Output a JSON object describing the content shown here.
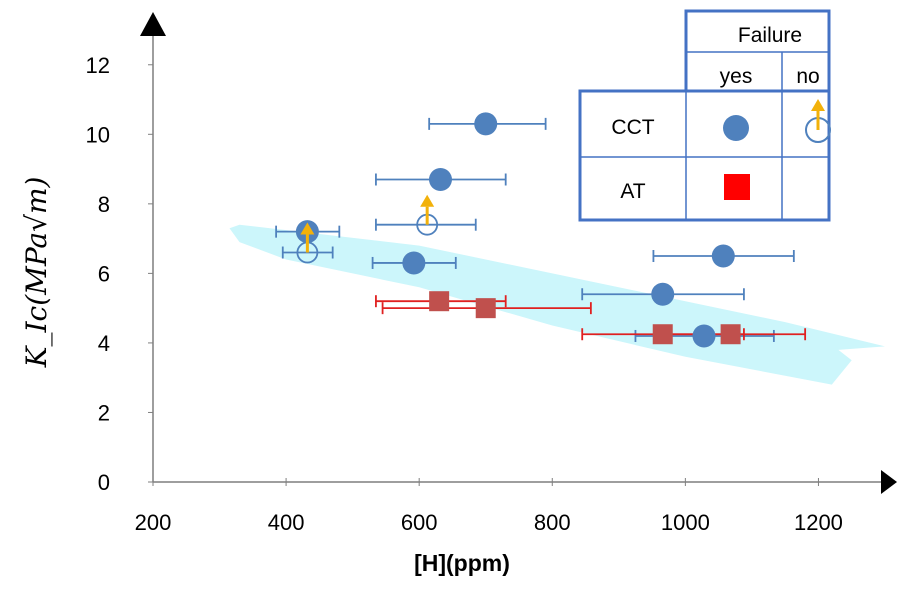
{
  "chart_data": {
    "type": "scatter",
    "title": "",
    "xlabel": "[H](ppm)",
    "ylabel": "K_Ic(MPa√m)",
    "xlim": [
      200,
      1300
    ],
    "ylim": [
      0,
      13
    ],
    "xticks": [
      200,
      400,
      600,
      800,
      1000,
      1200
    ],
    "yticks": [
      0,
      2,
      4,
      6,
      8,
      10,
      12
    ],
    "grid": false,
    "band": {
      "description_color": "#ccf6fb",
      "upper": [
        [
          315,
          7.3
        ],
        [
          330,
          7.4
        ],
        [
          600,
          6.8
        ],
        [
          800,
          6.0
        ],
        [
          1000,
          5.2
        ],
        [
          1150,
          4.6
        ],
        [
          1300,
          3.9
        ]
      ],
      "lower": [
        [
          1300,
          3.9
        ],
        [
          1230,
          3.8
        ],
        [
          1250,
          3.5
        ],
        [
          1220,
          2.8
        ],
        [
          1000,
          3.6
        ],
        [
          800,
          4.5
        ],
        [
          600,
          5.6
        ],
        [
          400,
          6.4
        ],
        [
          330,
          6.9
        ]
      ]
    },
    "colors": {
      "cct": "#4f81bd",
      "at": "#c0504d",
      "at_errorbar": "#e02020",
      "legend_at": "#ff0000",
      "arrow": "#f2b10a",
      "legend_border": "#4472c4",
      "legend_fill": "#ffffff"
    },
    "series": [
      {
        "group": "CCT",
        "failure": "yes",
        "marker": "filled-circle",
        "points": [
          {
            "x": 700,
            "y": 10.3,
            "xerr": [
              615,
              790
            ]
          },
          {
            "x": 632,
            "y": 8.7,
            "xerr": [
              535,
              730
            ]
          },
          {
            "x": 432,
            "y": 7.2,
            "xerr": [
              385,
              480
            ]
          },
          {
            "x": 592,
            "y": 6.3,
            "xerr": [
              530,
              655
            ]
          },
          {
            "x": 1057,
            "y": 6.5,
            "xerr": [
              952,
              1163
            ]
          },
          {
            "x": 966,
            "y": 5.4,
            "xerr": [
              845,
              1088
            ]
          },
          {
            "x": 1028,
            "y": 4.2,
            "xerr": [
              925,
              1133
            ]
          }
        ]
      },
      {
        "group": "CCT",
        "failure": "no",
        "marker": "open-circle-arrow",
        "points": [
          {
            "x": 612,
            "y": 7.4,
            "xerr": [
              535,
              685
            ]
          },
          {
            "x": 432,
            "y": 6.6,
            "xerr": [
              395,
              470
            ]
          }
        ]
      },
      {
        "group": "AT",
        "failure": "yes",
        "marker": "filled-square",
        "points": [
          {
            "x": 630,
            "y": 5.2,
            "xerr": [
              535,
              730
            ]
          },
          {
            "x": 700,
            "y": 5.0,
            "xerr": [
              545,
              858
            ]
          },
          {
            "x": 966,
            "y": 4.25,
            "xerr": [
              845,
              1088
            ]
          },
          {
            "x": 1068,
            "y": 4.25,
            "xerr": [
              965,
              1180
            ]
          }
        ]
      }
    ],
    "legend": {
      "placement": "top-right",
      "header": "Failure",
      "columns": [
        "yes",
        "no"
      ],
      "rows": [
        "CCT",
        "AT"
      ]
    }
  }
}
